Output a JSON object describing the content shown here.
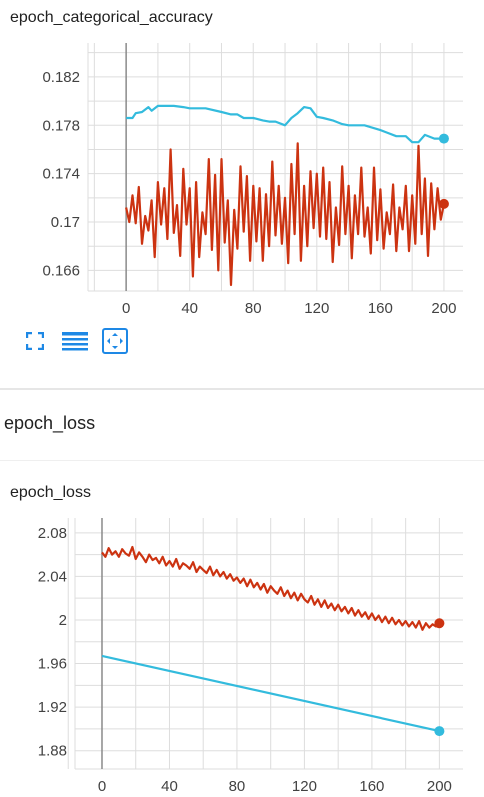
{
  "colors": {
    "train": "#cc3311",
    "validation": "#33bbdd",
    "icon_blue": "#1e88e5"
  },
  "section": {
    "title": "epoch_loss"
  },
  "toolbar": {
    "icons": [
      "fullscreen-icon",
      "data-table-icon",
      "fit-domain-icon"
    ]
  },
  "chart_data": [
    {
      "type": "line",
      "title": "epoch_categorical_accuracy",
      "xlabel": "",
      "ylabel": "",
      "xlim": [
        -24,
        212
      ],
      "ylim": [
        0.1643,
        0.1848
      ],
      "xticks": [
        0,
        40,
        80,
        120,
        160,
        200
      ],
      "yticks": [
        0.166,
        0.17,
        0.174,
        0.178,
        0.182
      ],
      "ytick_labels": [
        "0.166",
        "0.17",
        "0.174",
        "0.178",
        "0.182"
      ],
      "grid": true,
      "series": [
        {
          "color": "#33bbdd",
          "x": [
            0,
            4,
            6,
            10,
            14,
            16,
            20,
            30,
            36,
            40,
            50,
            60,
            66,
            70,
            74,
            80,
            86,
            90,
            94,
            100,
            104,
            108,
            112,
            116,
            120,
            124,
            130,
            136,
            140,
            150,
            160,
            164,
            170,
            176,
            180,
            184,
            188,
            194,
            200
          ],
          "y": [
            0.1786,
            0.1786,
            0.179,
            0.1791,
            0.1795,
            0.1792,
            0.1796,
            0.1796,
            0.1795,
            0.1794,
            0.1794,
            0.1791,
            0.1789,
            0.1789,
            0.1786,
            0.1786,
            0.1784,
            0.1783,
            0.1783,
            0.178,
            0.1786,
            0.179,
            0.1795,
            0.1794,
            0.1787,
            0.1786,
            0.1784,
            0.1781,
            0.178,
            0.178,
            0.1776,
            0.1774,
            0.1771,
            0.1771,
            0.1766,
            0.1766,
            0.1772,
            0.1769,
            0.1769
          ]
        },
        {
          "color": "#cc3311",
          "x": [
            0,
            2,
            4,
            6,
            8,
            10,
            12,
            14,
            16,
            18,
            20,
            22,
            24,
            26,
            28,
            30,
            32,
            34,
            36,
            38,
            40,
            42,
            44,
            46,
            48,
            50,
            52,
            54,
            56,
            58,
            60,
            62,
            64,
            66,
            68,
            70,
            72,
            74,
            76,
            78,
            80,
            82,
            84,
            86,
            88,
            90,
            92,
            94,
            96,
            98,
            100,
            102,
            104,
            106,
            108,
            110,
            112,
            114,
            116,
            118,
            120,
            122,
            124,
            126,
            128,
            130,
            132,
            134,
            136,
            138,
            140,
            142,
            144,
            146,
            148,
            150,
            152,
            154,
            156,
            158,
            160,
            162,
            164,
            166,
            168,
            170,
            172,
            174,
            176,
            178,
            180,
            182,
            184,
            186,
            188,
            190,
            192,
            194,
            196,
            198,
            200
          ],
          "y": [
            0.1712,
            0.17,
            0.1722,
            0.1699,
            0.1729,
            0.1682,
            0.1705,
            0.1693,
            0.1718,
            0.1671,
            0.1733,
            0.1698,
            0.1728,
            0.1686,
            0.176,
            0.1691,
            0.1714,
            0.1672,
            0.1744,
            0.1698,
            0.1728,
            0.1655,
            0.1733,
            0.1671,
            0.1708,
            0.169,
            0.1752,
            0.1677,
            0.1739,
            0.166,
            0.1752,
            0.1683,
            0.1718,
            0.1648,
            0.171,
            0.1678,
            0.1746,
            0.1692,
            0.1738,
            0.1668,
            0.173,
            0.1684,
            0.1728,
            0.1668,
            0.1723,
            0.168,
            0.175,
            0.1689,
            0.173,
            0.1682,
            0.172,
            0.1666,
            0.1748,
            0.169,
            0.1765,
            0.1668,
            0.173,
            0.168,
            0.1742,
            0.1695,
            0.174,
            0.1688,
            0.1745,
            0.1686,
            0.1733,
            0.1667,
            0.1712,
            0.1681,
            0.1746,
            0.169,
            0.173,
            0.167,
            0.1722,
            0.169,
            0.1745,
            0.1688,
            0.1712,
            0.1674,
            0.1745,
            0.1685,
            0.1727,
            0.1678,
            0.1708,
            0.169,
            0.1731,
            0.1676,
            0.1712,
            0.1694,
            0.173,
            0.1676,
            0.1722,
            0.1682,
            0.1763,
            0.169,
            0.1736,
            0.1672,
            0.1732,
            0.1694,
            0.1728,
            0.1702,
            0.1715
          ]
        }
      ]
    },
    {
      "type": "line",
      "title": "epoch_loss",
      "xlabel": "",
      "ylabel": "",
      "xlim": [
        -16,
        214
      ],
      "ylim": [
        1.8632,
        2.0936
      ],
      "xticks": [
        0,
        40,
        80,
        120,
        160,
        200
      ],
      "yticks": [
        1.88,
        1.92,
        1.96,
        2.0,
        2.04,
        2.08
      ],
      "ytick_labels": [
        "1.88",
        "1.92",
        "1.96",
        "2",
        "2.04",
        "2.08"
      ],
      "grid": true,
      "series": [
        {
          "color": "#cc3311",
          "x": [
            0,
            2,
            4,
            6,
            8,
            10,
            12,
            14,
            16,
            18,
            20,
            22,
            24,
            26,
            28,
            30,
            32,
            34,
            36,
            38,
            40,
            42,
            44,
            46,
            48,
            50,
            52,
            54,
            56,
            58,
            60,
            62,
            64,
            66,
            68,
            70,
            72,
            74,
            76,
            78,
            80,
            82,
            84,
            86,
            88,
            90,
            92,
            94,
            96,
            98,
            100,
            102,
            104,
            106,
            108,
            110,
            112,
            114,
            116,
            118,
            120,
            122,
            124,
            126,
            128,
            130,
            132,
            134,
            136,
            138,
            140,
            142,
            144,
            146,
            148,
            150,
            152,
            154,
            156,
            158,
            160,
            162,
            164,
            166,
            168,
            170,
            172,
            174,
            176,
            178,
            180,
            182,
            184,
            186,
            188,
            190,
            192,
            194,
            196,
            198,
            200
          ],
          "y": [
            2.062,
            2.058,
            2.066,
            2.06,
            2.063,
            2.058,
            2.065,
            2.061,
            2.059,
            2.067,
            2.056,
            2.062,
            2.058,
            2.053,
            2.06,
            2.055,
            2.057,
            2.052,
            2.058,
            2.05,
            2.054,
            2.049,
            2.056,
            2.047,
            2.052,
            2.05,
            2.047,
            2.053,
            2.044,
            2.049,
            2.046,
            2.043,
            2.049,
            2.041,
            2.046,
            2.04,
            2.044,
            2.038,
            2.042,
            2.036,
            2.039,
            2.034,
            2.038,
            2.031,
            2.037,
            2.03,
            2.034,
            2.028,
            2.033,
            2.025,
            2.031,
            2.027,
            2.024,
            2.03,
            2.022,
            2.027,
            2.02,
            2.025,
            2.018,
            2.024,
            2.019,
            2.016,
            2.022,
            2.014,
            2.019,
            2.012,
            2.018,
            2.011,
            2.015,
            2.009,
            2.014,
            2.008,
            2.012,
            2.006,
            2.011,
            2.004,
            2.009,
            2.003,
            2.007,
            2.001,
            2.006,
            2.0,
            2.004,
            1.998,
            2.003,
            1.997,
            2.002,
            1.996,
            2.0,
            1.995,
            1.999,
            1.994,
            1.998,
            1.993,
            1.999,
            1.991,
            1.997,
            1.993,
            1.996,
            1.994,
            1.997
          ]
        },
        {
          "color": "#33bbdd",
          "x": [
            0,
            200
          ],
          "y": [
            1.967,
            1.898
          ]
        }
      ]
    }
  ]
}
